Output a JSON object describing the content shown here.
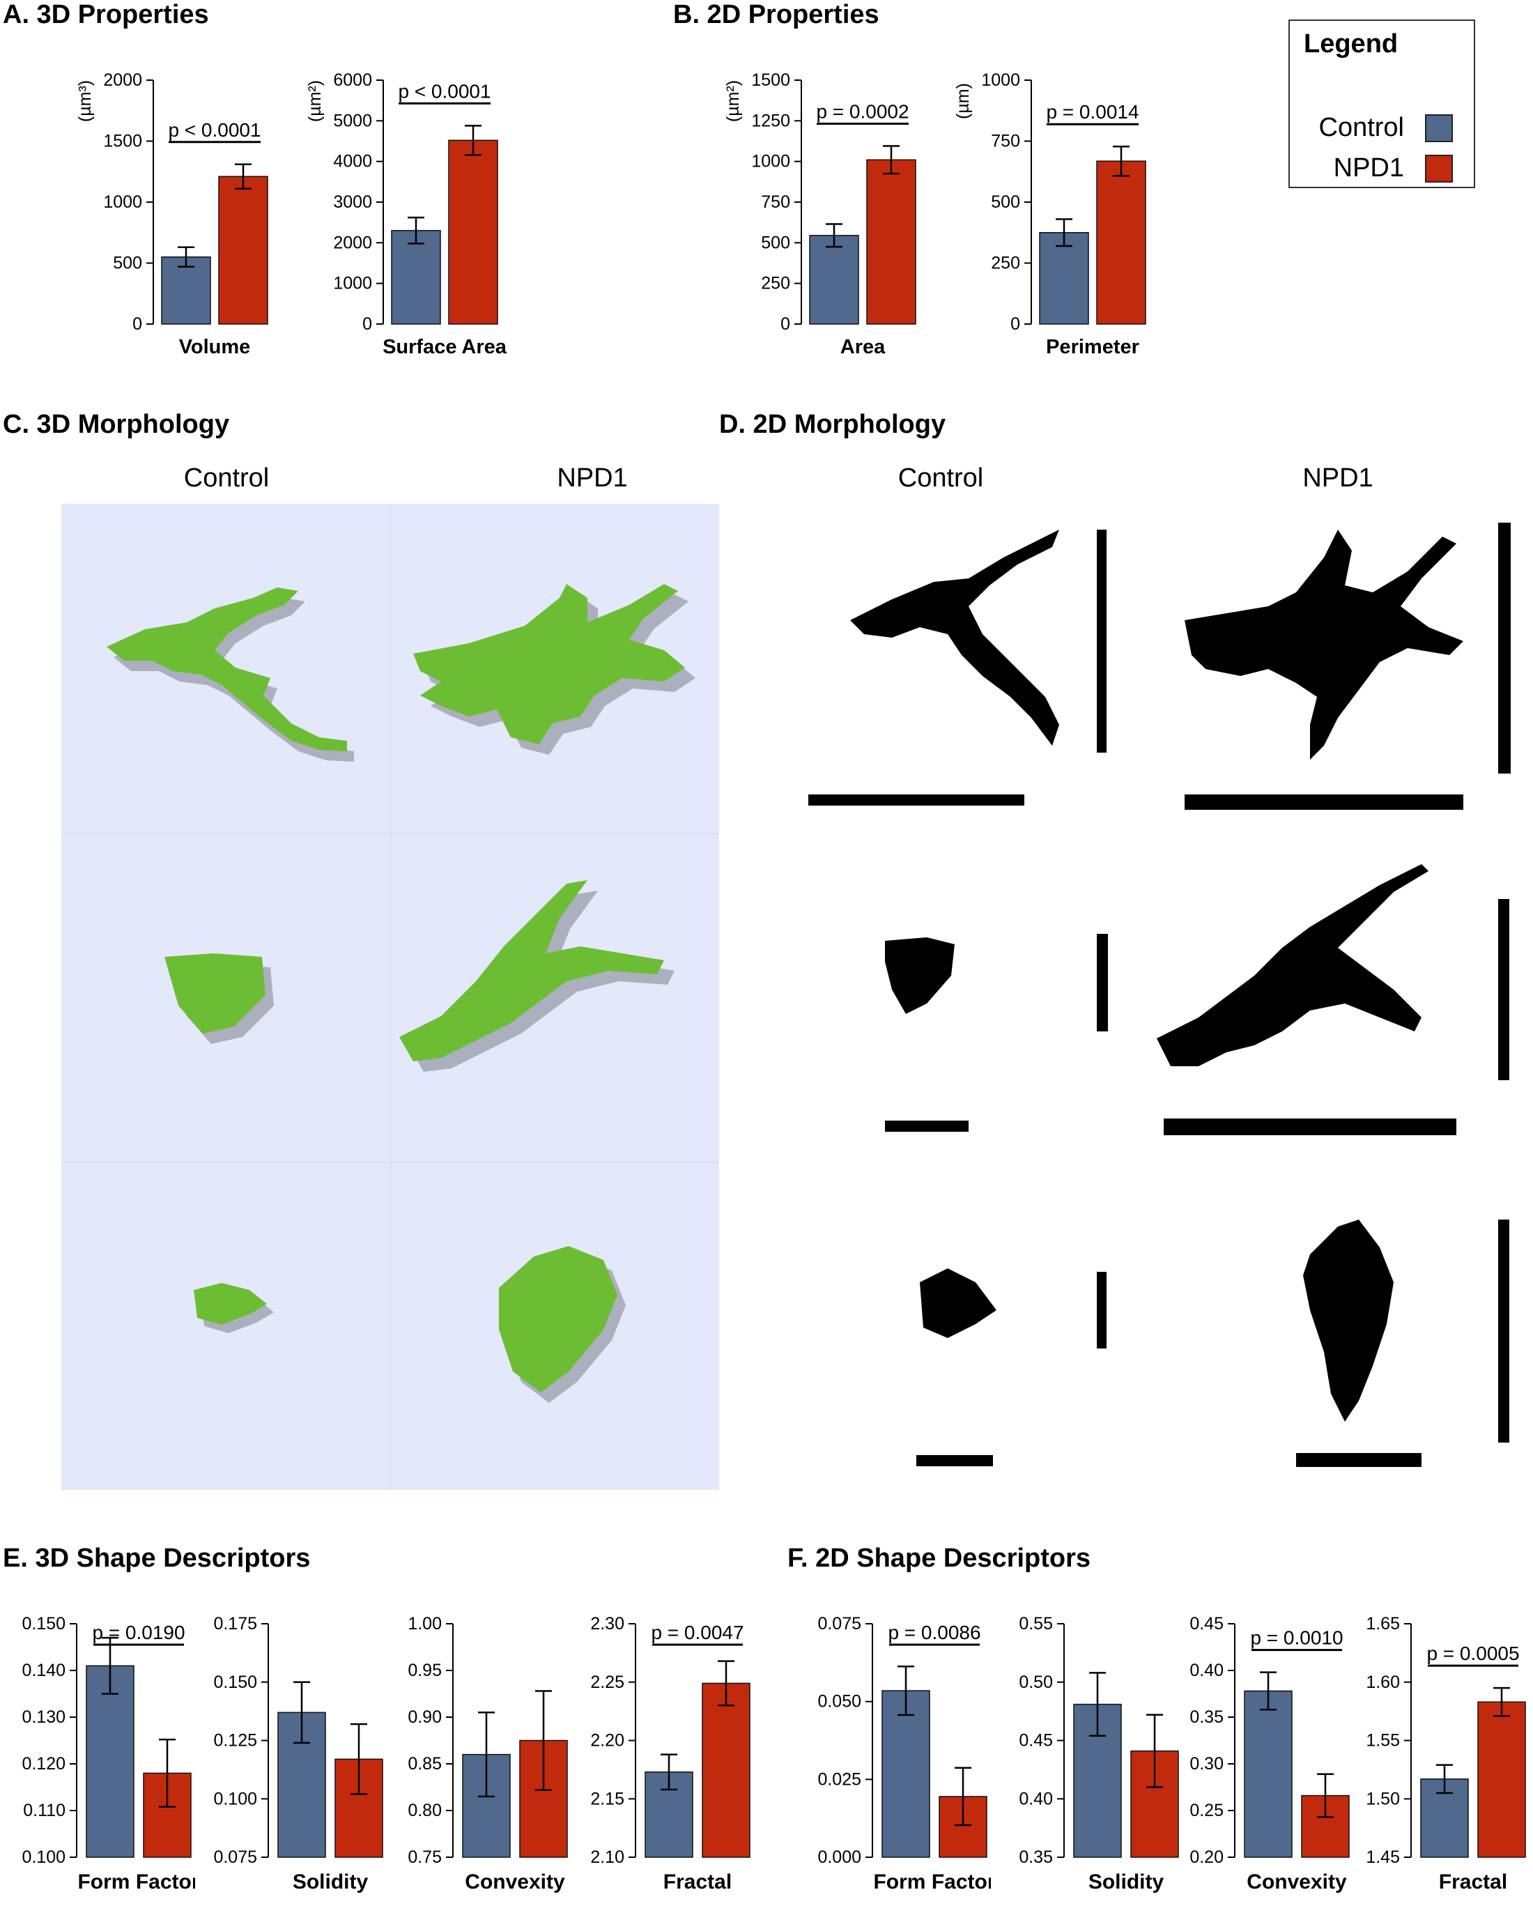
{
  "panels": {
    "A": "A.  3D Properties",
    "B": "B.  2D Properties",
    "C": "C.  3D Morphology",
    "D": "D.  2D Morphology",
    "E": "E.  3D Shape Descriptors",
    "F": "F.  2D Shape Descriptors"
  },
  "legend": {
    "title": "Legend",
    "items": [
      {
        "label": "Control",
        "color": "#50698c"
      },
      {
        "label": "NPD1",
        "color": "#c22a0e"
      }
    ]
  },
  "morphology": {
    "col_control": "Control",
    "col_npd1": "NPD1"
  },
  "colors": {
    "control": "#50698c",
    "npd1": "#c22a0e",
    "cell_3d": "#6dbd34",
    "cell_3d_shadow": "#9a9ca8",
    "panel_3d_bg": "#e3e8fb"
  },
  "chart_data": [
    {
      "type": "bar",
      "panel": "A",
      "xlabel": "Volume",
      "ylabel_unit": "(µm³)",
      "ylim": [
        0,
        2000
      ],
      "yticks": [
        0,
        500,
        1000,
        1500,
        2000
      ],
      "tick_labels": [
        "0",
        "500",
        "1000",
        "1500",
        "2000"
      ],
      "categories": [
        "Control",
        "NPD1"
      ],
      "values": [
        550,
        1210
      ],
      "errors": [
        80,
        100
      ],
      "p": "p < 0.0001"
    },
    {
      "type": "bar",
      "panel": "A",
      "xlabel": "Surface Area",
      "ylabel_unit": "(µm²)",
      "ylim": [
        0,
        6000
      ],
      "yticks": [
        0,
        1000,
        2000,
        3000,
        4000,
        5000,
        6000
      ],
      "tick_labels": [
        "0",
        "1000",
        "2000",
        "3000",
        "4000",
        "5000",
        "6000"
      ],
      "categories": [
        "Control",
        "NPD1"
      ],
      "values": [
        2300,
        4520
      ],
      "errors": [
        320,
        360
      ],
      "p": "p < 0.0001"
    },
    {
      "type": "bar",
      "panel": "B",
      "xlabel": "Area",
      "ylabel_unit": "(µm²)",
      "ylim": [
        0,
        1500
      ],
      "yticks": [
        0,
        250,
        500,
        750,
        1000,
        1250,
        1500
      ],
      "tick_labels": [
        "0",
        "250",
        "500",
        "750",
        "1000",
        "1250",
        "1500"
      ],
      "categories": [
        "Control",
        "NPD1"
      ],
      "values": [
        545,
        1010
      ],
      "errors": [
        70,
        85
      ],
      "p": "p = 0.0002"
    },
    {
      "type": "bar",
      "panel": "B",
      "xlabel": "Perimeter",
      "ylabel_unit": "(µm)",
      "ylim": [
        0,
        1000
      ],
      "yticks": [
        0,
        250,
        500,
        750,
        1000
      ],
      "tick_labels": [
        "0",
        "250",
        "500",
        "750",
        "1000"
      ],
      "categories": [
        "Control",
        "NPD1"
      ],
      "values": [
        375,
        668
      ],
      "errors": [
        55,
        60
      ],
      "p": "p = 0.0014"
    },
    {
      "type": "bar",
      "panel": "E",
      "xlabel": "Form Factor",
      "ylim": [
        0.1,
        0.15
      ],
      "yticks": [
        0.1,
        0.11,
        0.12,
        0.13,
        0.14,
        0.15
      ],
      "tick_labels": [
        "0.100",
        "0.110",
        "0.120",
        "0.130",
        "0.140",
        "0.150"
      ],
      "categories": [
        "Control",
        "NPD1"
      ],
      "values": [
        0.141,
        0.118
      ],
      "errors": [
        0.006,
        0.0072
      ],
      "p": "p = 0.0190"
    },
    {
      "type": "bar",
      "panel": "E",
      "xlabel": "Solidity",
      "ylim": [
        0.075,
        0.175
      ],
      "yticks": [
        0.075,
        0.1,
        0.125,
        0.15,
        0.175
      ],
      "tick_labels": [
        "0.075",
        "0.100",
        "0.125",
        "0.150",
        "0.175"
      ],
      "categories": [
        "Control",
        "NPD1"
      ],
      "values": [
        0.137,
        0.117
      ],
      "errors": [
        0.013,
        0.015
      ],
      "p": ""
    },
    {
      "type": "bar",
      "panel": "E",
      "xlabel": "Convexity",
      "ylim": [
        0.75,
        1.0
      ],
      "yticks": [
        0.75,
        0.8,
        0.85,
        0.9,
        0.95,
        1.0
      ],
      "tick_labels": [
        "0.75",
        "0.80",
        "0.85",
        "0.90",
        "0.95",
        "1.00"
      ],
      "categories": [
        "Control",
        "NPD1"
      ],
      "values": [
        0.86,
        0.875
      ],
      "errors": [
        0.045,
        0.053
      ],
      "p": ""
    },
    {
      "type": "bar",
      "panel": "E",
      "xlabel": "Fractal",
      "ylim": [
        2.1,
        2.3
      ],
      "yticks": [
        2.1,
        2.15,
        2.2,
        2.25,
        2.3
      ],
      "tick_labels": [
        "2.10",
        "2.15",
        "2.20",
        "2.25",
        "2.30"
      ],
      "categories": [
        "Control",
        "NPD1"
      ],
      "values": [
        2.173,
        2.249
      ],
      "errors": [
        0.015,
        0.019
      ],
      "p": "p = 0.0047"
    },
    {
      "type": "bar",
      "panel": "F",
      "xlabel": "Form Factor",
      "ylim": [
        0,
        0.075
      ],
      "yticks": [
        0,
        0.025,
        0.05,
        0.075
      ],
      "tick_labels": [
        "0.000",
        "0.025",
        "0.050",
        "0.075"
      ],
      "categories": [
        "Control",
        "NPD1"
      ],
      "values": [
        0.0535,
        0.0195
      ],
      "errors": [
        0.0078,
        0.0092
      ],
      "p": "p = 0.0086"
    },
    {
      "type": "bar",
      "panel": "F",
      "xlabel": "Solidity",
      "ylim": [
        0.35,
        0.55
      ],
      "yticks": [
        0.35,
        0.4,
        0.45,
        0.5,
        0.55
      ],
      "tick_labels": [
        "0.35",
        "0.40",
        "0.45",
        "0.50",
        "0.55"
      ],
      "categories": [
        "Control",
        "NPD1"
      ],
      "values": [
        0.481,
        0.441
      ],
      "errors": [
        0.027,
        0.031
      ],
      "p": ""
    },
    {
      "type": "bar",
      "panel": "F",
      "xlabel": "Convexity",
      "ylim": [
        0.2,
        0.45
      ],
      "yticks": [
        0.2,
        0.25,
        0.3,
        0.35,
        0.4,
        0.45
      ],
      "tick_labels": [
        "0.20",
        "0.25",
        "0.30",
        "0.35",
        "0.40",
        "0.45"
      ],
      "categories": [
        "Control",
        "NPD1"
      ],
      "values": [
        0.378,
        0.266
      ],
      "errors": [
        0.02,
        0.023
      ],
      "p": "p = 0.0010"
    },
    {
      "type": "bar",
      "panel": "F",
      "xlabel": "Fractal",
      "ylim": [
        1.45,
        1.65
      ],
      "yticks": [
        1.45,
        1.5,
        1.55,
        1.6,
        1.65
      ],
      "tick_labels": [
        "1.45",
        "1.50",
        "1.55",
        "1.60",
        "1.65"
      ],
      "categories": [
        "Control",
        "NPD1"
      ],
      "values": [
        1.517,
        1.583
      ],
      "errors": [
        0.012,
        0.012
      ],
      "p": "p = 0.0005"
    }
  ]
}
